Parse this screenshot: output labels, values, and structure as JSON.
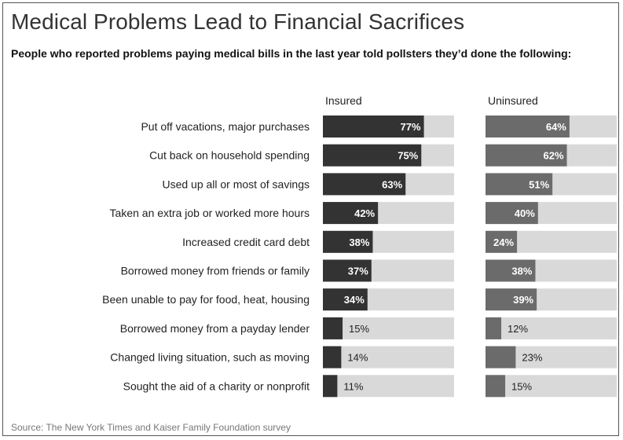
{
  "title": "Medical Problems Lead to Financial Sacrifices",
  "subtitle": "People who reported problems paying medical bills in the last year told pollsters they’d done the following:",
  "source": "Source: The New York Times and Kaiser Family Foundation survey",
  "colors": {
    "insured_bar": "#333333",
    "uninsured_bar": "#6b6b6b",
    "track": "#d9d9d9"
  },
  "chart_data": {
    "type": "bar",
    "orientation": "horizontal",
    "value_format": "percent",
    "categories": [
      "Put off vacations, major purchases",
      "Cut back on household spending",
      "Used up all or most of savings",
      "Taken an extra job or worked more hours",
      "Increased credit card debt",
      "Borrowed money from friends or family",
      "Been unable to pay for food, heat, housing",
      "Borrowed money from a payday lender",
      "Changed living situation, such as moving",
      "Sought the aid of a charity or nonprofit"
    ],
    "series": [
      {
        "name": "Insured",
        "values": [
          77,
          75,
          63,
          42,
          38,
          37,
          34,
          15,
          14,
          11
        ]
      },
      {
        "name": "Uninsured",
        "values": [
          64,
          62,
          51,
          40,
          24,
          38,
          39,
          12,
          23,
          15
        ]
      }
    ],
    "xlim": [
      0,
      100
    ]
  }
}
